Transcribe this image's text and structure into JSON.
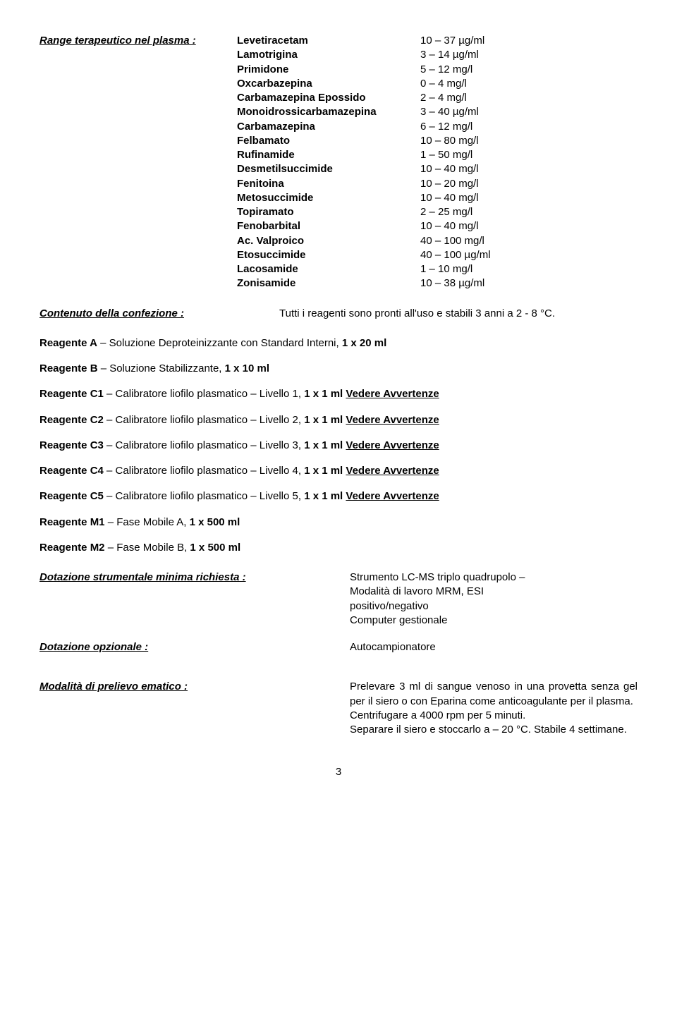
{
  "range_label": "Range terapeutico nel plasma :",
  "drugs": [
    {
      "name": "Levetiracetam",
      "val": "10 – 37 µg/ml"
    },
    {
      "name": "Lamotrigina",
      "val": "3 – 14 µg/ml"
    },
    {
      "name": "Primidone",
      "val": "5 – 12 mg/l"
    },
    {
      "name": "Oxcarbazepina",
      "val": "0 – 4 mg/l"
    },
    {
      "name": "Carbamazepina Epossido",
      "val": "2 – 4 mg/l"
    },
    {
      "name": "Monoidrossicarbamazepina",
      "val": "3 – 40 µg/ml"
    },
    {
      "name": "Carbamazepina",
      "val": "6 – 12 mg/l"
    },
    {
      "name": "Felbamato",
      "val": "10 – 80 mg/l"
    },
    {
      "name": "Rufinamide",
      "val": "1 – 50 mg/l"
    },
    {
      "name": "Desmetilsuccimide",
      "val": "10 – 40 mg/l"
    },
    {
      "name": "Fenitoina",
      "val": "10 – 20 mg/l"
    },
    {
      "name": "Metosuccimide",
      "val": "10 – 40 mg/l"
    },
    {
      "name": "Topiramato",
      "val": "2 – 25 mg/l"
    },
    {
      "name": "Fenobarbital",
      "val": "10 – 40 mg/l"
    },
    {
      "name": "Ac. Valproico",
      "val": "40 – 100 mg/l"
    },
    {
      "name": "Etosuccimide",
      "val": "40 – 100 µg/ml"
    },
    {
      "name": "Lacosamide",
      "val": "1 – 10 mg/l"
    },
    {
      "name": "Zonisamide",
      "val": "10 – 38 µg/ml"
    }
  ],
  "content_label": "Contenuto della confezione :",
  "content_text": "Tutti i reagenti sono pronti all'uso e stabili 3 anni a 2 - 8 °C.",
  "reagents": [
    {
      "bold": "Reagente A",
      "rest": " – Soluzione Deproteinizzante con Standard Interni, ",
      "bold2": "1 x 20 ml",
      "warn": ""
    },
    {
      "bold": "Reagente B",
      "rest": " – Soluzione Stabilizzante, ",
      "bold2": "1 x 10 ml",
      "warn": ""
    },
    {
      "bold": "Reagente C1",
      "rest": " – Calibratore liofilo plasmatico – Livello 1, ",
      "bold2": "1 x 1 ml",
      "warn": "Vedere Avvertenze"
    },
    {
      "bold": "Reagente C2",
      "rest": " – Calibratore liofilo plasmatico – Livello 2, ",
      "bold2": "1 x 1 ml",
      "warn": "Vedere Avvertenze"
    },
    {
      "bold": "Reagente C3",
      "rest": " – Calibratore liofilo plasmatico – Livello 3, ",
      "bold2": "1 x 1 ml",
      "warn": "Vedere Avvertenze"
    },
    {
      "bold": "Reagente C4",
      "rest": " – Calibratore liofilo plasmatico – Livello 4, ",
      "bold2": "1 x 1 ml",
      "warn": "Vedere Avvertenze"
    },
    {
      "bold": "Reagente C5",
      "rest": " – Calibratore liofilo plasmatico – Livello 5, ",
      "bold2": "1 x 1 ml",
      "warn": "Vedere Avvertenze"
    },
    {
      "bold": "Reagente M1",
      "rest": " – Fase Mobile A, ",
      "bold2": "1 x 500 ml",
      "warn": ""
    },
    {
      "bold": "Reagente M2",
      "rest": " – Fase Mobile B, ",
      "bold2": "1 x 500 ml",
      "warn": ""
    }
  ],
  "instrument_label": "Dotazione strumentale minima richiesta :",
  "instrument_lines": [
    "Strumento LC-MS triplo quadrupolo –",
    "Modalità di lavoro MRM, ESI",
    "positivo/negativo",
    "Computer gestionale"
  ],
  "optional_label": "Dotazione opzionale :",
  "optional_text": "Autocampionatore",
  "sampling_label": "Modalità di prelievo ematico :",
  "sampling_lines": [
    "Prelevare 3 ml di sangue venoso in una provetta senza gel per il siero o con Eparina come anticoagulante per il plasma.",
    "Centrifugare a 4000 rpm per 5 minuti.",
    "Separare il siero e stoccarlo a – 20 °C. Stabile 4 settimane."
  ],
  "page_number": "3"
}
